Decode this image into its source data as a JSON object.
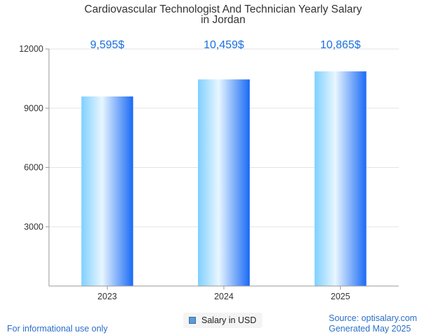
{
  "chart_data": {
    "type": "bar",
    "title": [
      "Cardiovascular Technologist And Technician Yearly Salary",
      "in Jordan"
    ],
    "categories": [
      "2023",
      "2024",
      "2025"
    ],
    "series": [
      {
        "name": "Salary in USD",
        "values": [
          9595,
          10459,
          10865
        ],
        "labels": [
          "9,595$",
          "10,459$",
          "10,865$"
        ]
      }
    ],
    "ylim": [
      0,
      12000
    ],
    "yticks": [
      3000,
      6000,
      9000,
      12000
    ],
    "ytick_labels": [
      "3000",
      "6000",
      "9000",
      "12000"
    ],
    "grid": true,
    "legend": "bottom-center",
    "colors": {
      "bar_light": "#e8f6ff",
      "bar_mid": "#7fd0ff",
      "bar_dark": "#1a6af5",
      "label": "#1a6fe0"
    }
  },
  "footer": {
    "left": "For informational use only",
    "source": "Source: optisalary.com",
    "generated": "Generated May 2025"
  }
}
